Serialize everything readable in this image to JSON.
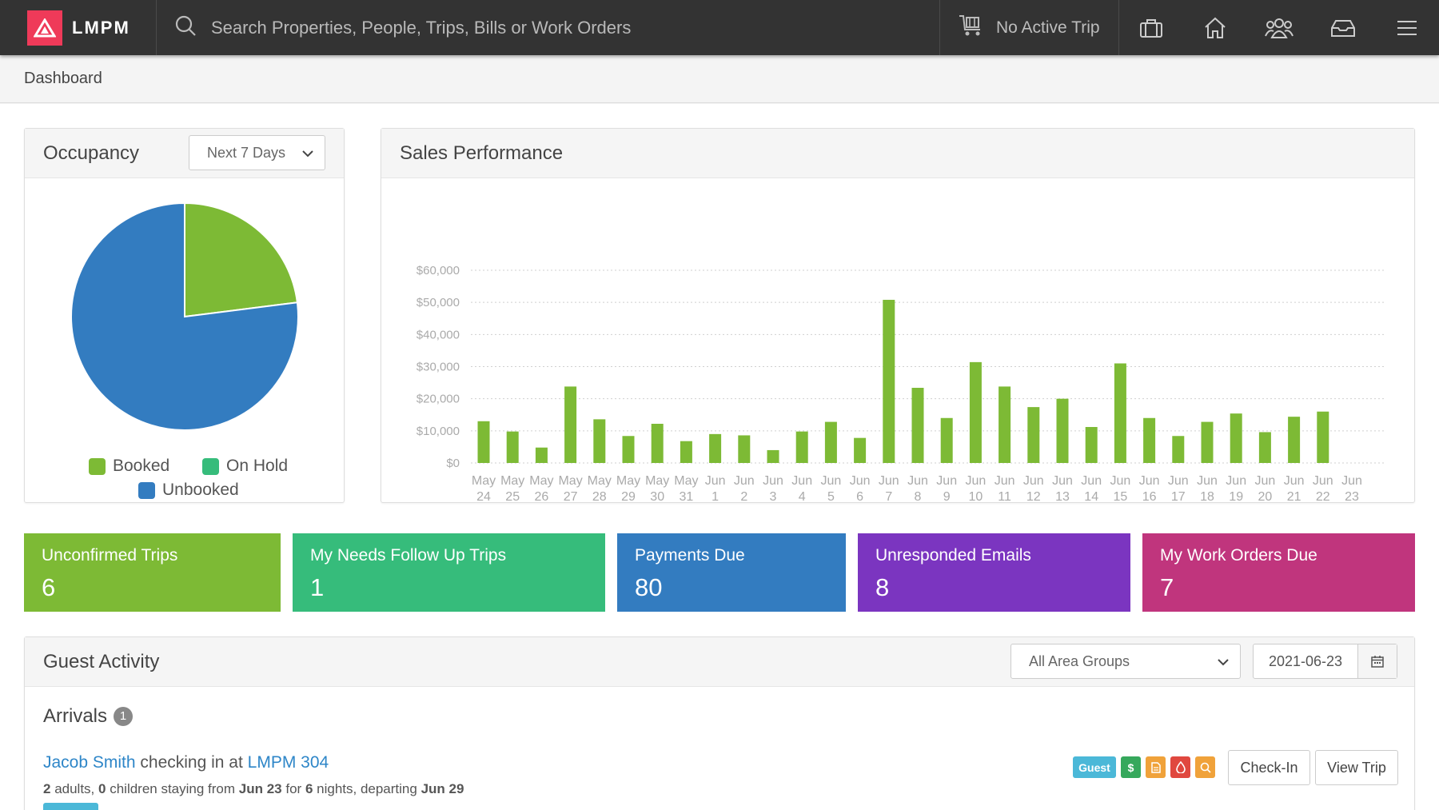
{
  "app": {
    "brand": "LMPM",
    "search_placeholder": "Search Properties, People, Trips, Bills or Work Orders",
    "trip_status": "No Active Trip",
    "nav_icons": [
      "briefcase-icon",
      "home-icon",
      "people-icon",
      "inbox-icon",
      "menu-icon"
    ]
  },
  "breadcrumb": "Dashboard",
  "occupancy": {
    "title": "Occupancy",
    "range_select": "Next 7 Days",
    "legend": [
      {
        "label": "Booked",
        "color": "#7dba35"
      },
      {
        "label": "On Hold",
        "color": "#36bc7b"
      },
      {
        "label": "Unbooked",
        "color": "#337cc0"
      }
    ],
    "chart_data": {
      "type": "pie",
      "labels": [
        "Booked",
        "On Hold",
        "Unbooked"
      ],
      "values": [
        23,
        0,
        77
      ],
      "colors": [
        "#7dba35",
        "#36bc7b",
        "#337cc0"
      ]
    }
  },
  "sales": {
    "title": "Sales Performance",
    "chart_data": {
      "type": "bar",
      "categories": [
        [
          "May",
          "24"
        ],
        [
          "May",
          "25"
        ],
        [
          "May",
          "26"
        ],
        [
          "May",
          "27"
        ],
        [
          "May",
          "28"
        ],
        [
          "May",
          "29"
        ],
        [
          "May",
          "30"
        ],
        [
          "May",
          "31"
        ],
        [
          "Jun",
          "1"
        ],
        [
          "Jun",
          "2"
        ],
        [
          "Jun",
          "3"
        ],
        [
          "Jun",
          "4"
        ],
        [
          "Jun",
          "5"
        ],
        [
          "Jun",
          "6"
        ],
        [
          "Jun",
          "7"
        ],
        [
          "Jun",
          "8"
        ],
        [
          "Jun",
          "9"
        ],
        [
          "Jun",
          "10"
        ],
        [
          "Jun",
          "11"
        ],
        [
          "Jun",
          "12"
        ],
        [
          "Jun",
          "13"
        ],
        [
          "Jun",
          "14"
        ],
        [
          "Jun",
          "15"
        ],
        [
          "Jun",
          "16"
        ],
        [
          "Jun",
          "17"
        ],
        [
          "Jun",
          "18"
        ],
        [
          "Jun",
          "19"
        ],
        [
          "Jun",
          "20"
        ],
        [
          "Jun",
          "21"
        ],
        [
          "Jun",
          "22"
        ],
        [
          "Jun",
          "23"
        ]
      ],
      "values": [
        13000,
        9800,
        4800,
        23800,
        13600,
        8400,
        12200,
        6800,
        9000,
        8600,
        4000,
        9800,
        12800,
        7800,
        50800,
        23400,
        14000,
        31400,
        23800,
        17400,
        20000,
        11200,
        31000,
        14000,
        8400,
        12800,
        15400,
        9600,
        14400,
        16000,
        0
      ],
      "y_ticks": [
        "$0",
        "$10,000",
        "$20,000",
        "$30,000",
        "$40,000",
        "$50,000",
        "$60,000"
      ],
      "ylim": [
        0,
        60000
      ],
      "grid": true,
      "bar_color": "#7dba35"
    }
  },
  "tiles": [
    {
      "label": "Unconfirmed Trips",
      "value": "6",
      "color": "#7dba35"
    },
    {
      "label": "My Needs Follow Up Trips",
      "value": "1",
      "color": "#36bc7b"
    },
    {
      "label": "Payments Due",
      "value": "80",
      "color": "#337cc0"
    },
    {
      "label": "Unresponded Emails",
      "value": "8",
      "color": "#7b35c0"
    },
    {
      "label": "My Work Orders Due",
      "value": "7",
      "color": "#c0357d"
    }
  ],
  "guest_activity": {
    "title": "Guest Activity",
    "area_select": "All Area Groups",
    "date": "2021-06-23",
    "arrivals": {
      "title": "Arrivals",
      "count": "1",
      "item": {
        "guest_name": "Jacob Smith",
        "checking_in_text": " checking in at ",
        "property": "LMPM 304",
        "adults": "2",
        "adults_text": " adults, ",
        "children": "0",
        "children_text": " children staying from ",
        "from": "Jun 23",
        "for_text": " for ",
        "nights": "6",
        "nights_text": " nights, departing ",
        "departing": "Jun 29",
        "tags": [
          {
            "label": "Guest",
            "color": "#4bb8d8",
            "icon": "guest-tag"
          },
          {
            "label": "$",
            "color": "#36a85c",
            "icon": "dollar-icon"
          },
          {
            "label": "",
            "color": "#f0a23a",
            "icon": "document-icon"
          },
          {
            "label": "",
            "color": "#e0483f",
            "icon": "drop-icon"
          },
          {
            "label": "",
            "color": "#f0a23a",
            "icon": "search-icon"
          }
        ],
        "checkin_label": "Check-In",
        "viewtrip_label": "View Trip",
        "source_color": "#4bb8d8"
      }
    }
  }
}
